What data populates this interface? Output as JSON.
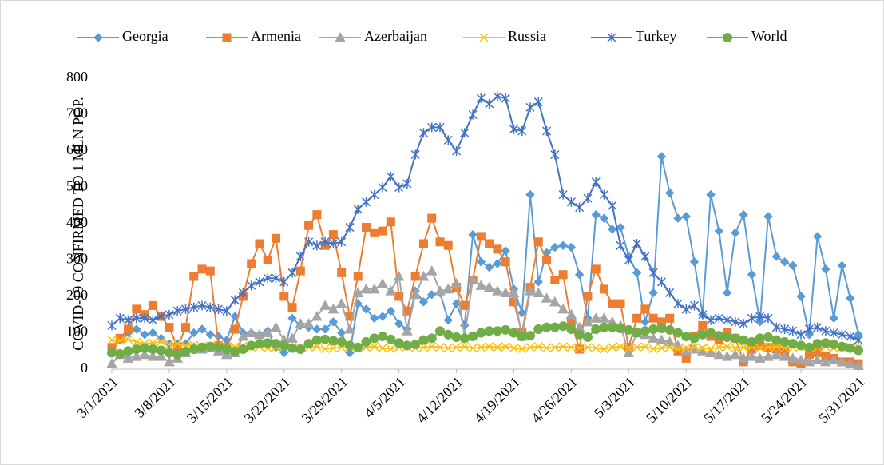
{
  "chart_data": {
    "type": "line",
    "ylabel": "COVID-19 CONFIRMED TO 1 MLN POP.",
    "legend": "top",
    "grid": false,
    "categories": [
      "3/1/2021",
      null,
      null,
      null,
      null,
      null,
      null,
      "3/8/2021",
      null,
      null,
      null,
      null,
      null,
      null,
      "3/15/2021",
      null,
      null,
      null,
      null,
      null,
      null,
      "3/22/2021",
      null,
      null,
      null,
      null,
      null,
      null,
      "3/29/2021",
      null,
      null,
      null,
      null,
      null,
      null,
      "4/5/2021",
      null,
      null,
      null,
      null,
      null,
      null,
      "4/12/2021",
      null,
      null,
      null,
      null,
      null,
      null,
      "4/19/2021",
      null,
      null,
      null,
      null,
      null,
      null,
      "4/26/2021",
      null,
      null,
      null,
      null,
      null,
      null,
      "5/3/2021",
      null,
      null,
      null,
      null,
      null,
      null,
      "5/10/2021",
      null,
      null,
      null,
      null,
      null,
      null,
      "5/17/2021",
      null,
      null,
      null,
      null,
      null,
      null,
      "5/24/2021",
      null,
      null,
      null,
      null,
      null,
      null,
      "5/31/2021"
    ],
    "ylim": [
      0,
      800
    ],
    "yticks": [
      0,
      100,
      200,
      300,
      400,
      500,
      600,
      700,
      800
    ],
    "series": [
      {
        "name": "Georgia",
        "color": "#5b9bd5",
        "marker": "diamond",
        "values": [
          50,
          80,
          100,
          110,
          95,
          100,
          85,
          70,
          70,
          70,
          100,
          110,
          95,
          90,
          80,
          145,
          100,
          100,
          95,
          105,
          60,
          45,
          140,
          120,
          115,
          110,
          110,
          130,
          100,
          45,
          180,
          165,
          140,
          145,
          160,
          125,
          110,
          215,
          185,
          205,
          210,
          135,
          180,
          120,
          370,
          295,
          280,
          290,
          325,
          220,
          155,
          480,
          240,
          320,
          335,
          340,
          335,
          260,
          140,
          425,
          415,
          385,
          390,
          310,
          265,
          130,
          210,
          585,
          485,
          415,
          420,
          295,
          150,
          480,
          380,
          210,
          375,
          425,
          260,
          130,
          420,
          310,
          295,
          285,
          200,
          95,
          365,
          275,
          140,
          285,
          195,
          95
        ]
      },
      {
        "name": "Armenia",
        "color": "#ed7d31",
        "marker": "square",
        "values": [
          60,
          85,
          110,
          165,
          150,
          175,
          145,
          115,
          60,
          115,
          255,
          275,
          270,
          65,
          60,
          110,
          200,
          290,
          345,
          300,
          360,
          200,
          170,
          270,
          395,
          425,
          340,
          370,
          265,
          145,
          255,
          390,
          375,
          380,
          405,
          200,
          160,
          255,
          345,
          415,
          350,
          340,
          225,
          175,
          245,
          365,
          345,
          330,
          295,
          185,
          100,
          225,
          350,
          300,
          245,
          260,
          130,
          55,
          200,
          275,
          220,
          180,
          180,
          60,
          140,
          165,
          140,
          130,
          140,
          50,
          30,
          90,
          120,
          90,
          80,
          100,
          85,
          20,
          55,
          65,
          60,
          55,
          50,
          20,
          15,
          40,
          45,
          35,
          30,
          20,
          20,
          15
        ]
      },
      {
        "name": "Azerbaijan",
        "color": "#a5a5a5",
        "marker": "triangle",
        "values": [
          15,
          40,
          30,
          35,
          40,
          35,
          35,
          20,
          30,
          45,
          60,
          55,
          60,
          50,
          40,
          45,
          90,
          100,
          95,
          100,
          115,
          80,
          85,
          125,
          125,
          145,
          175,
          165,
          180,
          110,
          210,
          220,
          220,
          235,
          215,
          255,
          105,
          205,
          255,
          270,
          215,
          220,
          235,
          90,
          245,
          230,
          225,
          215,
          210,
          210,
          90,
          215,
          210,
          195,
          185,
          165,
          150,
          115,
          130,
          140,
          140,
          130,
          120,
          45,
          100,
          95,
          85,
          80,
          75,
          65,
          50,
          55,
          50,
          45,
          40,
          35,
          40,
          30,
          35,
          30,
          35,
          40,
          35,
          30,
          25,
          20,
          25,
          20,
          25,
          20,
          15,
          10
        ]
      },
      {
        "name": "Russia",
        "color": "#ffc000",
        "marker": "x",
        "values": [
          80,
          78,
          82,
          75,
          70,
          72,
          76,
          68,
          70,
          65,
          66,
          62,
          64,
          66,
          60,
          62,
          64,
          60,
          62,
          58,
          60,
          62,
          60,
          58,
          60,
          62,
          56,
          58,
          60,
          62,
          58,
          60,
          62,
          58,
          56,
          60,
          62,
          58,
          60,
          62,
          60,
          58,
          60,
          62,
          58,
          60,
          62,
          60,
          62,
          58,
          56,
          60,
          62,
          58,
          60,
          62,
          60,
          58,
          60,
          58,
          55,
          60,
          62,
          58,
          60,
          62,
          56,
          58,
          60,
          55,
          58,
          60,
          58,
          56,
          60,
          62,
          58,
          60,
          62,
          58,
          60,
          62,
          58,
          60,
          62,
          58,
          60,
          62,
          58,
          60,
          62,
          60
        ]
      },
      {
        "name": "Turkey",
        "color": "#4472c4",
        "marker": "star",
        "values": [
          120,
          140,
          135,
          140,
          140,
          135,
          145,
          150,
          160,
          165,
          170,
          175,
          170,
          165,
          160,
          190,
          210,
          230,
          240,
          250,
          250,
          240,
          265,
          310,
          350,
          340,
          350,
          345,
          350,
          390,
          440,
          460,
          480,
          500,
          530,
          500,
          510,
          590,
          650,
          665,
          665,
          630,
          600,
          650,
          700,
          745,
          730,
          750,
          745,
          660,
          655,
          720,
          735,
          655,
          590,
          480,
          460,
          445,
          470,
          515,
          480,
          450,
          340,
          300,
          345,
          310,
          265,
          240,
          210,
          180,
          165,
          175,
          150,
          135,
          140,
          135,
          130,
          125,
          140,
          145,
          140,
          115,
          110,
          105,
          95,
          110,
          115,
          105,
          100,
          95,
          90,
          80
        ]
      },
      {
        "name": "World",
        "color": "#70ad47",
        "marker": "circle",
        "values": [
          45,
          42,
          50,
          55,
          58,
          55,
          52,
          45,
          40,
          48,
          55,
          60,
          62,
          60,
          55,
          48,
          55,
          65,
          70,
          72,
          70,
          65,
          58,
          55,
          70,
          80,
          82,
          78,
          75,
          65,
          60,
          75,
          85,
          90,
          82,
          72,
          65,
          68,
          80,
          85,
          105,
          95,
          88,
          85,
          90,
          100,
          105,
          105,
          108,
          100,
          90,
          92,
          110,
          115,
          115,
          118,
          110,
          95,
          88,
          110,
          115,
          115,
          112,
          108,
          100,
          105,
          110,
          112,
          108,
          100,
          90,
          85,
          95,
          100,
          92,
          88,
          85,
          80,
          75,
          85,
          88,
          80,
          75,
          70,
          65,
          60,
          70,
          72,
          68,
          62,
          58,
          52
        ]
      }
    ]
  }
}
